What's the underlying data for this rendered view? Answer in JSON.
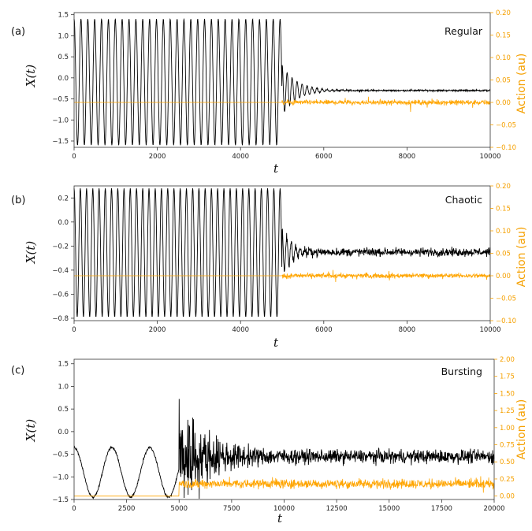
{
  "colors": {
    "signal": "#000000",
    "action": "#ffa500",
    "axis": "#333333"
  },
  "chart_data": [
    {
      "panel": "(a)",
      "label": "Regular",
      "type": "line",
      "xlabel": "t",
      "ylabel": "X(t)",
      "ylabel_right": "Action (au)",
      "xlim": [
        0,
        10000
      ],
      "ylim": [
        -1.65,
        1.55
      ],
      "ylim_right": [
        -0.1,
        0.2
      ],
      "xticks": [
        0,
        2000,
        4000,
        6000,
        8000,
        10000
      ],
      "yticks": [
        -1.5,
        -1.0,
        -0.5,
        0.0,
        0.5,
        1.0,
        1.5
      ],
      "yticks_right": [
        -0.1,
        -0.05,
        0.0,
        0.05,
        0.1,
        0.15,
        0.2
      ],
      "xtick_labels": [
        "0",
        "2000",
        "4000",
        "6000",
        "8000",
        "10000"
      ],
      "ytick_labels": [
        "−1.5",
        "−1.0",
        "−0.5",
        "0.0",
        "0.5",
        "1.0",
        "1.5"
      ],
      "ytick_labels_right": [
        "−0.10",
        "−0.05",
        "0.00",
        "0.05",
        "0.10",
        "0.15",
        "0.20"
      ],
      "series": [
        {
          "axis": "left",
          "color": "#000000",
          "segments": [
            {
              "kind": "oscillation",
              "t0": 0,
              "t1": 5000,
              "period": 165,
              "min": -1.6,
              "max": 1.4
            },
            {
              "kind": "damped",
              "t0": 5000,
              "t1": 10000,
              "start_amp": 0.6,
              "decay": 350,
              "mean": -0.3,
              "noise": 0.03,
              "period": 120
            }
          ]
        },
        {
          "axis": "right",
          "color": "#ffa500",
          "segments": [
            {
              "kind": "constant",
              "t0": 0,
              "t1": 5000,
              "value": 0.0
            },
            {
              "kind": "noise",
              "t0": 5000,
              "t1": 10000,
              "mean": 0.0,
              "amp": 0.008,
              "spike": 0.02
            }
          ]
        }
      ]
    },
    {
      "panel": "(b)",
      "label": "Chaotic",
      "type": "line",
      "xlabel": "t",
      "ylabel": "X(t)",
      "ylabel_right": "Action (au)",
      "xlim": [
        0,
        10000
      ],
      "ylim": [
        -0.82,
        0.3
      ],
      "ylim_right": [
        -0.1,
        0.2
      ],
      "xticks": [
        0,
        2000,
        4000,
        6000,
        8000,
        10000
      ],
      "yticks": [
        -0.8,
        -0.6,
        -0.4,
        -0.2,
        0.0,
        0.2
      ],
      "yticks_right": [
        -0.1,
        -0.05,
        0.0,
        0.05,
        0.1,
        0.15,
        0.2
      ],
      "xtick_labels": [
        "0",
        "2000",
        "4000",
        "6000",
        "8000",
        "10000"
      ],
      "ytick_labels": [
        "−0.8",
        "−0.6",
        "−0.4",
        "−0.2",
        "0.0",
        "0.2"
      ],
      "ytick_labels_right": [
        "−0.10",
        "−0.05",
        "0.00",
        "0.05",
        "0.10",
        "0.15",
        "0.20"
      ],
      "series": [
        {
          "axis": "left",
          "color": "#000000",
          "segments": [
            {
              "kind": "oscillation",
              "t0": 0,
              "t1": 5000,
              "period": 150,
              "min": -0.79,
              "max": 0.28
            },
            {
              "kind": "damped",
              "t0": 5000,
              "t1": 10000,
              "start_amp": 0.2,
              "decay": 250,
              "mean": -0.25,
              "noise": 0.05,
              "period": 110
            }
          ]
        },
        {
          "axis": "right",
          "color": "#ffa500",
          "segments": [
            {
              "kind": "constant",
              "t0": 0,
              "t1": 5000,
              "value": 0.0
            },
            {
              "kind": "noise",
              "t0": 5000,
              "t1": 10000,
              "mean": 0.0,
              "amp": 0.008,
              "spike": 0.018
            }
          ]
        }
      ]
    },
    {
      "panel": "(c)",
      "label": "Bursting",
      "type": "line",
      "xlabel": "t",
      "ylabel": "X(t)",
      "ylabel_right": "Action (au)",
      "xlim": [
        0,
        20000
      ],
      "ylim": [
        -1.5,
        1.6
      ],
      "ylim_right": [
        -0.05,
        2.0
      ],
      "xticks": [
        0,
        2500,
        5000,
        7500,
        10000,
        12500,
        15000,
        17500,
        20000
      ],
      "yticks": [
        -1.5,
        -1.0,
        -0.5,
        0.0,
        0.5,
        1.0,
        1.5
      ],
      "yticks_right": [
        0.0,
        0.25,
        0.5,
        0.75,
        1.0,
        1.25,
        1.5,
        1.75,
        2.0
      ],
      "xtick_labels": [
        "0",
        "2500",
        "5000",
        "7500",
        "10000",
        "12500",
        "15000",
        "17500",
        "20000"
      ],
      "ytick_labels": [
        "−1.5",
        "−1.0",
        "−0.5",
        "0.0",
        "0.5",
        "1.0",
        "1.5"
      ],
      "ytick_labels_right": [
        "0.00",
        "0.25",
        "0.50",
        "0.75",
        "1.00",
        "1.25",
        "1.50",
        "1.75",
        "2.00"
      ],
      "series": [
        {
          "axis": "left",
          "color": "#000000",
          "segments": [
            {
              "kind": "bursting",
              "t0": 0,
              "t1": 5000,
              "period": 1800,
              "min": -1.45,
              "max": -0.35
            },
            {
              "kind": "burst-noise",
              "t0": 5000,
              "t1": 20000,
              "mean": -0.55,
              "noise": 0.18,
              "start_amp": 1.6,
              "decay": 1200
            }
          ]
        },
        {
          "axis": "right",
          "color": "#ffa500",
          "segments": [
            {
              "kind": "constant",
              "t0": 0,
              "t1": 5000,
              "value": 0.0
            },
            {
              "kind": "noise",
              "t0": 5000,
              "t1": 20000,
              "mean": 0.18,
              "amp": 0.1,
              "spike": 0.15
            }
          ]
        }
      ]
    }
  ]
}
